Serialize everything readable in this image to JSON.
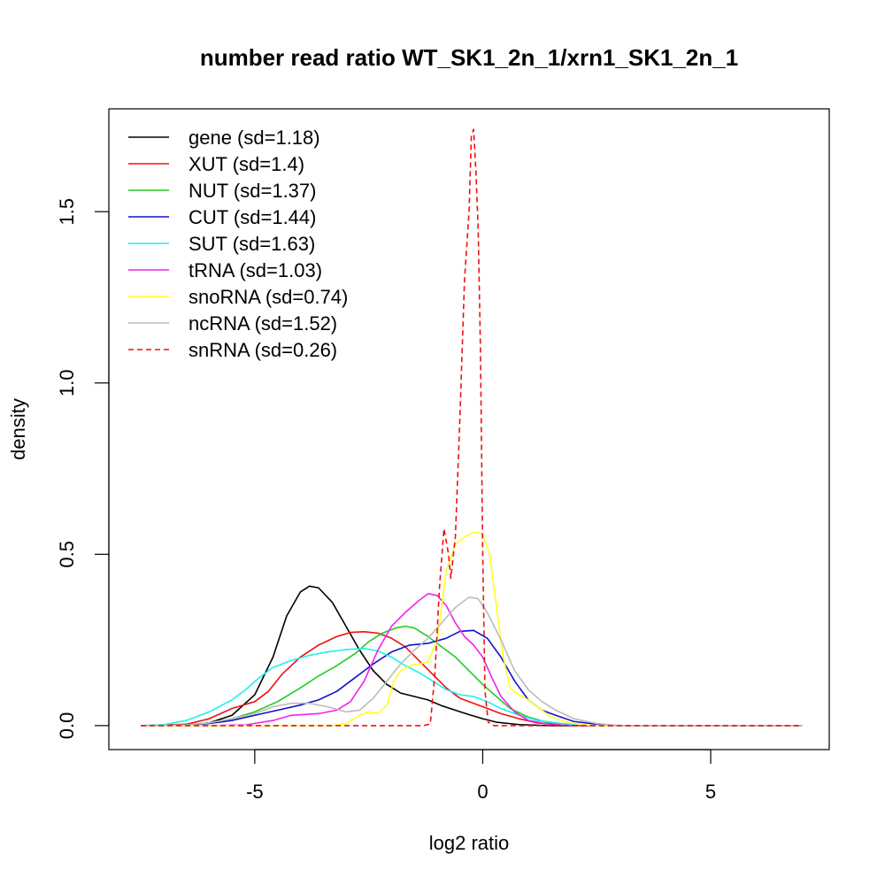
{
  "chart_data": {
    "type": "line",
    "title": "number read ratio WT_SK1_2n_1/xrn1_SK1_2n_1",
    "xlabel": "log2 ratio",
    "ylabel": "density",
    "xlim": [
      -8.2,
      7.6
    ],
    "ylim": [
      -0.07,
      1.8
    ],
    "x_ticks": [
      {
        "value": -5,
        "label": "-5"
      },
      {
        "value": 0,
        "label": "0"
      },
      {
        "value": 5,
        "label": "5"
      }
    ],
    "y_ticks": [
      {
        "value": 0.0,
        "label": "0.0"
      },
      {
        "value": 0.5,
        "label": "0.5"
      },
      {
        "value": 1.0,
        "label": "1.0"
      },
      {
        "value": 1.5,
        "label": "1.5"
      }
    ],
    "grid": false,
    "legend_position": "top-left",
    "series": [
      {
        "name": "gene (sd=1.18)",
        "color": "#000000",
        "dash": "solid",
        "points": [
          [
            -7.5,
            0
          ],
          [
            -6.5,
            0.002
          ],
          [
            -6,
            0.008
          ],
          [
            -5.5,
            0.03
          ],
          [
            -5,
            0.09
          ],
          [
            -4.6,
            0.2
          ],
          [
            -4.3,
            0.32
          ],
          [
            -4.0,
            0.39
          ],
          [
            -3.8,
            0.407
          ],
          [
            -3.6,
            0.402
          ],
          [
            -3.3,
            0.36
          ],
          [
            -3.0,
            0.29
          ],
          [
            -2.7,
            0.22
          ],
          [
            -2.4,
            0.16
          ],
          [
            -2.1,
            0.12
          ],
          [
            -1.8,
            0.095
          ],
          [
            -1.5,
            0.085
          ],
          [
            -1.2,
            0.075
          ],
          [
            -0.9,
            0.058
          ],
          [
            -0.6,
            0.045
          ],
          [
            -0.3,
            0.032
          ],
          [
            0,
            0.02
          ],
          [
            0.3,
            0.01
          ],
          [
            0.8,
            0.003
          ],
          [
            1.5,
            0
          ],
          [
            7,
            0
          ]
        ]
      },
      {
        "name": "XUT (sd=1.4)",
        "color": "#ee1111",
        "dash": "solid",
        "points": [
          [
            -7.5,
            0
          ],
          [
            -6.5,
            0.004
          ],
          [
            -6,
            0.02
          ],
          [
            -5.5,
            0.05
          ],
          [
            -5.0,
            0.07
          ],
          [
            -4.7,
            0.1
          ],
          [
            -4.4,
            0.15
          ],
          [
            -4.0,
            0.2
          ],
          [
            -3.6,
            0.235
          ],
          [
            -3.2,
            0.26
          ],
          [
            -2.9,
            0.272
          ],
          [
            -2.6,
            0.274
          ],
          [
            -2.3,
            0.27
          ],
          [
            -2.0,
            0.255
          ],
          [
            -1.7,
            0.23
          ],
          [
            -1.4,
            0.19
          ],
          [
            -1.1,
            0.15
          ],
          [
            -0.8,
            0.11
          ],
          [
            -0.5,
            0.08
          ],
          [
            -0.2,
            0.065
          ],
          [
            0.1,
            0.05
          ],
          [
            0.4,
            0.035
          ],
          [
            0.8,
            0.02
          ],
          [
            1.2,
            0.008
          ],
          [
            1.8,
            0.002
          ],
          [
            2.5,
            0
          ],
          [
            7,
            0
          ]
        ]
      },
      {
        "name": "NUT (sd=1.37)",
        "color": "#22cc22",
        "dash": "solid",
        "points": [
          [
            -7.5,
            0
          ],
          [
            -6.5,
            0.002
          ],
          [
            -6,
            0.008
          ],
          [
            -5.5,
            0.02
          ],
          [
            -5,
            0.04
          ],
          [
            -4.5,
            0.07
          ],
          [
            -4.0,
            0.11
          ],
          [
            -3.6,
            0.145
          ],
          [
            -3.2,
            0.175
          ],
          [
            -2.8,
            0.21
          ],
          [
            -2.5,
            0.245
          ],
          [
            -2.2,
            0.27
          ],
          [
            -1.9,
            0.285
          ],
          [
            -1.7,
            0.29
          ],
          [
            -1.5,
            0.285
          ],
          [
            -1.2,
            0.26
          ],
          [
            -0.9,
            0.23
          ],
          [
            -0.6,
            0.2
          ],
          [
            -0.3,
            0.16
          ],
          [
            0,
            0.12
          ],
          [
            0.3,
            0.085
          ],
          [
            0.6,
            0.05
          ],
          [
            1.0,
            0.025
          ],
          [
            1.4,
            0.01
          ],
          [
            1.9,
            0.003
          ],
          [
            2.5,
            0
          ],
          [
            7,
            0
          ]
        ]
      },
      {
        "name": "CUT (sd=1.44)",
        "color": "#1111cc",
        "dash": "solid",
        "points": [
          [
            -7.5,
            0
          ],
          [
            -6.5,
            0.002
          ],
          [
            -6,
            0.006
          ],
          [
            -5.5,
            0.015
          ],
          [
            -5,
            0.03
          ],
          [
            -4.5,
            0.045
          ],
          [
            -4.0,
            0.06
          ],
          [
            -3.6,
            0.075
          ],
          [
            -3.2,
            0.1
          ],
          [
            -2.8,
            0.14
          ],
          [
            -2.4,
            0.18
          ],
          [
            -2.0,
            0.215
          ],
          [
            -1.6,
            0.235
          ],
          [
            -1.2,
            0.24
          ],
          [
            -0.8,
            0.255
          ],
          [
            -0.5,
            0.275
          ],
          [
            -0.2,
            0.278
          ],
          [
            0.1,
            0.255
          ],
          [
            0.4,
            0.2
          ],
          [
            0.7,
            0.13
          ],
          [
            1.0,
            0.075
          ],
          [
            1.3,
            0.045
          ],
          [
            1.6,
            0.03
          ],
          [
            2.0,
            0.012
          ],
          [
            2.5,
            0.004
          ],
          [
            3.0,
            0
          ],
          [
            7,
            0
          ]
        ]
      },
      {
        "name": "SUT (sd=1.63)",
        "color": "#22eeee",
        "dash": "solid",
        "points": [
          [
            -7.5,
            0
          ],
          [
            -7.0,
            0.003
          ],
          [
            -6.5,
            0.015
          ],
          [
            -6.0,
            0.04
          ],
          [
            -5.5,
            0.075
          ],
          [
            -5.2,
            0.105
          ],
          [
            -4.9,
            0.14
          ],
          [
            -4.6,
            0.17
          ],
          [
            -4.2,
            0.19
          ],
          [
            -3.8,
            0.205
          ],
          [
            -3.4,
            0.215
          ],
          [
            -3.0,
            0.222
          ],
          [
            -2.6,
            0.225
          ],
          [
            -2.3,
            0.218
          ],
          [
            -2.0,
            0.2
          ],
          [
            -1.7,
            0.175
          ],
          [
            -1.4,
            0.155
          ],
          [
            -1.1,
            0.13
          ],
          [
            -0.8,
            0.105
          ],
          [
            -0.5,
            0.09
          ],
          [
            -0.2,
            0.085
          ],
          [
            0.1,
            0.07
          ],
          [
            0.4,
            0.05
          ],
          [
            0.8,
            0.03
          ],
          [
            1.2,
            0.015
          ],
          [
            1.8,
            0.005
          ],
          [
            2.5,
            0
          ],
          [
            7,
            0
          ]
        ]
      },
      {
        "name": "tRNA (sd=1.03)",
        "color": "#ee22ee",
        "dash": "solid",
        "points": [
          [
            -7.5,
            0
          ],
          [
            -6,
            0
          ],
          [
            -5.2,
            0.002
          ],
          [
            -4.6,
            0.015
          ],
          [
            -4.2,
            0.03
          ],
          [
            -3.6,
            0.035
          ],
          [
            -3.2,
            0.045
          ],
          [
            -2.9,
            0.07
          ],
          [
            -2.6,
            0.13
          ],
          [
            -2.3,
            0.22
          ],
          [
            -2.0,
            0.29
          ],
          [
            -1.7,
            0.33
          ],
          [
            -1.4,
            0.365
          ],
          [
            -1.2,
            0.385
          ],
          [
            -1.0,
            0.38
          ],
          [
            -0.8,
            0.35
          ],
          [
            -0.6,
            0.3
          ],
          [
            -0.4,
            0.26
          ],
          [
            -0.2,
            0.235
          ],
          [
            0,
            0.2
          ],
          [
            0.2,
            0.14
          ],
          [
            0.4,
            0.085
          ],
          [
            0.7,
            0.04
          ],
          [
            1.0,
            0.015
          ],
          [
            1.5,
            0.003
          ],
          [
            2.0,
            0
          ],
          [
            7,
            0
          ]
        ]
      },
      {
        "name": "snoRNA (sd=0.74)",
        "color": "#ffff22",
        "dash": "solid",
        "points": [
          [
            -7.5,
            0
          ],
          [
            -3.3,
            0
          ],
          [
            -3.0,
            0.005
          ],
          [
            -2.7,
            0.03
          ],
          [
            -2.5,
            0.04
          ],
          [
            -2.3,
            0.035
          ],
          [
            -2.1,
            0.06
          ],
          [
            -1.95,
            0.13
          ],
          [
            -1.8,
            0.16
          ],
          [
            -1.6,
            0.175
          ],
          [
            -1.4,
            0.18
          ],
          [
            -1.2,
            0.185
          ],
          [
            -1.0,
            0.25
          ],
          [
            -0.8,
            0.45
          ],
          [
            -0.6,
            0.53
          ],
          [
            -0.4,
            0.55
          ],
          [
            -0.2,
            0.565
          ],
          [
            0,
            0.56
          ],
          [
            0.15,
            0.5
          ],
          [
            0.3,
            0.35
          ],
          [
            0.45,
            0.2
          ],
          [
            0.6,
            0.11
          ],
          [
            0.8,
            0.09
          ],
          [
            1.0,
            0.075
          ],
          [
            1.2,
            0.055
          ],
          [
            1.5,
            0.025
          ],
          [
            1.9,
            0.008
          ],
          [
            2.4,
            0
          ],
          [
            7,
            0
          ]
        ]
      },
      {
        "name": "ncRNA (sd=1.52)",
        "color": "#bbbbbb",
        "dash": "solid",
        "points": [
          [
            -7.5,
            0
          ],
          [
            -6.5,
            0.002
          ],
          [
            -6,
            0.008
          ],
          [
            -5.5,
            0.02
          ],
          [
            -5,
            0.035
          ],
          [
            -4.6,
            0.055
          ],
          [
            -4.2,
            0.065
          ],
          [
            -3.8,
            0.065
          ],
          [
            -3.4,
            0.055
          ],
          [
            -3.0,
            0.04
          ],
          [
            -2.7,
            0.045
          ],
          [
            -2.4,
            0.08
          ],
          [
            -2.1,
            0.13
          ],
          [
            -1.8,
            0.18
          ],
          [
            -1.5,
            0.22
          ],
          [
            -1.2,
            0.255
          ],
          [
            -0.9,
            0.3
          ],
          [
            -0.6,
            0.345
          ],
          [
            -0.3,
            0.375
          ],
          [
            -0.1,
            0.37
          ],
          [
            0.1,
            0.33
          ],
          [
            0.4,
            0.25
          ],
          [
            0.7,
            0.16
          ],
          [
            1.0,
            0.105
          ],
          [
            1.3,
            0.07
          ],
          [
            1.6,
            0.045
          ],
          [
            2.0,
            0.02
          ],
          [
            2.5,
            0.006
          ],
          [
            3.0,
            0
          ],
          [
            7,
            0
          ]
        ]
      },
      {
        "name": "snRNA (sd=0.26)",
        "color": "#ee1111",
        "dash": "dashed",
        "points": [
          [
            -7.5,
            0
          ],
          [
            -1.3,
            0
          ],
          [
            -1.15,
            0.005
          ],
          [
            -1.05,
            0.15
          ],
          [
            -0.95,
            0.4
          ],
          [
            -0.85,
            0.575
          ],
          [
            -0.75,
            0.5
          ],
          [
            -0.7,
            0.43
          ],
          [
            -0.6,
            0.55
          ],
          [
            -0.5,
            0.9
          ],
          [
            -0.4,
            1.3
          ],
          [
            -0.3,
            1.5
          ],
          [
            -0.25,
            1.72
          ],
          [
            -0.2,
            1.74
          ],
          [
            -0.15,
            1.62
          ],
          [
            -0.1,
            1.45
          ],
          [
            -0.05,
            1.1
          ],
          [
            0,
            0.5
          ],
          [
            0.05,
            0.1
          ],
          [
            0.12,
            0.01
          ],
          [
            0.25,
            0
          ],
          [
            7,
            0
          ]
        ]
      }
    ]
  }
}
